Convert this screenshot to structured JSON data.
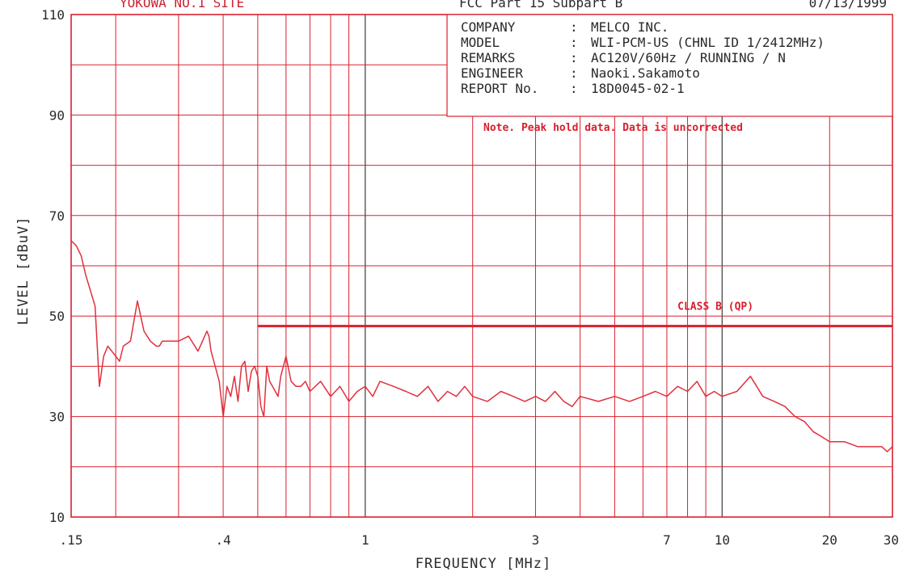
{
  "header": {
    "site": "YOKOWA NO.1 SITE",
    "standard": "FCC Part 15 Subpart B",
    "date": "07/13/1999"
  },
  "info": [
    {
      "key": "COMPANY",
      "sep": ":",
      "value": "MELCO INC."
    },
    {
      "key": "MODEL",
      "sep": ":",
      "value": "WLI-PCM-US (CHNL ID 1/2412MHz)"
    },
    {
      "key": "REMARKS",
      "sep": ":",
      "value": "AC120V/60Hz / RUNNING / N"
    },
    {
      "key": "ENGINEER",
      "sep": ":",
      "value": "Naoki.Sakamoto"
    },
    {
      "key": "REPORT No.",
      "sep": ":",
      "value": "18D0045-02-1"
    }
  ],
  "note": "Note.  Peak hold data. Data is uncorrected",
  "colors": {
    "grid": "#d8202e",
    "trace": "#e0303c",
    "text": "#2a2a2a"
  },
  "chart_data": {
    "type": "line",
    "xlabel": "FREQUENCY  [MHz]",
    "ylabel": "LEVEL  [dBuV]",
    "xscale": "log",
    "xlim": [
      0.15,
      30
    ],
    "ylim": [
      10,
      110
    ],
    "xticks": [
      {
        "v": 0.15,
        "label": ".15"
      },
      {
        "v": 0.4,
        "label": ".4"
      },
      {
        "v": 1,
        "label": "1"
      },
      {
        "v": 3,
        "label": "3"
      },
      {
        "v": 7,
        "label": "7"
      },
      {
        "v": 10,
        "label": "10"
      },
      {
        "v": 20,
        "label": "20"
      },
      {
        "v": 30,
        "label": "30"
      }
    ],
    "yticks": [
      {
        "v": 10,
        "label": "10"
      },
      {
        "v": 30,
        "label": "30"
      },
      {
        "v": 50,
        "label": "50"
      },
      {
        "v": 70,
        "label": "70"
      },
      {
        "v": 90,
        "label": "90"
      },
      {
        "v": 110,
        "label": "110"
      }
    ],
    "grid": true,
    "limit": {
      "name": "CLASS B (QP)",
      "x": [
        0.5,
        30
      ],
      "y": [
        48,
        48
      ]
    },
    "series": [
      {
        "x": [
          0.15,
          0.155,
          0.16,
          0.165,
          0.17,
          0.175,
          0.18,
          0.185,
          0.19,
          0.195,
          0.2,
          0.205,
          0.21,
          0.22,
          0.23,
          0.24,
          0.25,
          0.26,
          0.265,
          0.27,
          0.28,
          0.29,
          0.3,
          0.32,
          0.34,
          0.35,
          0.36,
          0.365,
          0.37,
          0.38,
          0.39,
          0.4,
          0.41,
          0.42,
          0.43,
          0.44,
          0.45,
          0.46,
          0.47,
          0.48,
          0.49,
          0.5,
          0.51,
          0.52,
          0.53,
          0.54,
          0.55,
          0.57,
          0.58,
          0.6,
          0.62,
          0.64,
          0.66,
          0.68,
          0.7,
          0.75,
          0.8,
          0.85,
          0.9,
          0.95,
          1.0,
          1.05,
          1.1,
          1.2,
          1.3,
          1.4,
          1.5,
          1.6,
          1.7,
          1.8,
          1.9,
          2.0,
          2.2,
          2.4,
          2.6,
          2.8,
          3.0,
          3.2,
          3.4,
          3.6,
          3.8,
          4.0,
          4.5,
          5.0,
          5.5,
          6.0,
          6.5,
          7.0,
          7.5,
          8.0,
          8.5,
          9.0,
          9.5,
          10.0,
          11.0,
          12.0,
          12.5,
          13.0,
          14.0,
          15.0,
          16.0,
          17.0,
          18.0,
          19.0,
          20.0,
          22.0,
          24.0,
          26.0,
          28.0,
          29.0,
          30.0
        ],
        "y": [
          65,
          64,
          62,
          58,
          55,
          52,
          36,
          42,
          44,
          43,
          42,
          41,
          44,
          45,
          53,
          47,
          45,
          44,
          44,
          45,
          45,
          45,
          45,
          46,
          43,
          45,
          47,
          46,
          43,
          40,
          37,
          30,
          36,
          34,
          38,
          33,
          40,
          41,
          35,
          39,
          40,
          38,
          32,
          30,
          40,
          37,
          36,
          34,
          38,
          42,
          37,
          36,
          36,
          37,
          35,
          37,
          34,
          36,
          33,
          35,
          36,
          34,
          37,
          36,
          35,
          34,
          36,
          33,
          35,
          34,
          36,
          34,
          33,
          35,
          34,
          33,
          34,
          33,
          35,
          33,
          32,
          34,
          33,
          34,
          33,
          34,
          35,
          34,
          36,
          35,
          37,
          34,
          35,
          34,
          35,
          38,
          36,
          34,
          33,
          32,
          30,
          29,
          27,
          26,
          25,
          25,
          24,
          24,
          24,
          23,
          24
        ]
      }
    ]
  }
}
